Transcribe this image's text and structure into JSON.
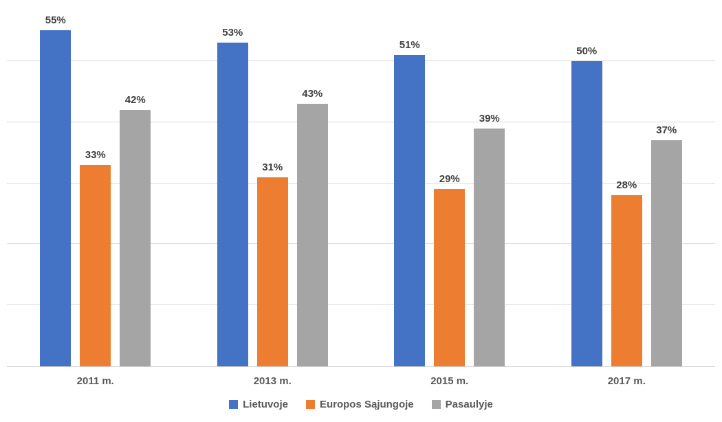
{
  "chart_data": {
    "type": "bar",
    "title": "",
    "categories": [
      "2011 m.",
      "2013 m.",
      "2015 m.",
      "2017 m."
    ],
    "series": [
      {
        "name": "Lietuvoje",
        "color": "#4472C4",
        "values": [
          55,
          53,
          51,
          50
        ],
        "labels": [
          "55%",
          "53%",
          "51%",
          "50%"
        ]
      },
      {
        "name": "Europos Sąjungoje",
        "color": "#ED7D31",
        "values": [
          33,
          31,
          29,
          28
        ],
        "labels": [
          "33%",
          "31%",
          "29%",
          "28%"
        ]
      },
      {
        "name": "Pasaulyje",
        "color": "#A5A5A5",
        "values": [
          42,
          43,
          39,
          37
        ],
        "labels": [
          "42%",
          "43%",
          "39%",
          "37%"
        ]
      }
    ],
    "xlabel": "",
    "ylabel": "",
    "ylim": [
      0,
      60
    ],
    "grid": true,
    "grid_step": 10,
    "gridline_color": "#d9d9d9",
    "data_labels": true,
    "legend_position": "bottom"
  }
}
